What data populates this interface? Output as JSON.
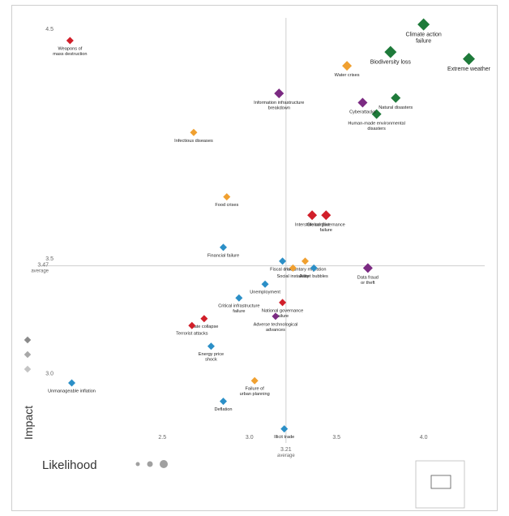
{
  "chart_data": {
    "type": "scatter",
    "xlabel": "Likelihood",
    "ylabel": "Impact",
    "xlim": [
      1.81,
      4.36
    ],
    "ylim": [
      2.72,
      4.57
    ],
    "x_ticks": [
      "2.5",
      "3.0",
      "3.5",
      "4.0"
    ],
    "y_ticks": [
      "4.5",
      "3.5",
      "3.0"
    ],
    "x_tick_values": [
      2.5,
      3.0,
      3.5,
      4.0
    ],
    "y_tick_values": [
      4.5,
      3.5,
      3.0
    ],
    "x_average": {
      "value": 3.21,
      "label": "3.21",
      "sublabel": "average"
    },
    "y_average": {
      "value": 3.47,
      "label": "3.47",
      "sublabel": "average"
    },
    "categories_colors": {
      "environmental": "#1e7a3a",
      "geopolitical": "#d11f2a",
      "technological": "#7b2a82",
      "economic": "#2b8fc7",
      "societal": "#f0a030"
    },
    "points": [
      {
        "label": "Climate action failure",
        "x": 4.0,
        "y": 4.52,
        "cat": "environmental",
        "size": "lg"
      },
      {
        "label": "Extreme weather",
        "x": 4.26,
        "y": 4.37,
        "cat": "environmental",
        "size": "lg"
      },
      {
        "label": "Biodiversity loss",
        "x": 3.81,
        "y": 4.4,
        "cat": "environmental",
        "size": "lg"
      },
      {
        "label": "Natural disasters",
        "x": 3.84,
        "y": 4.2,
        "cat": "environmental",
        "size": "md"
      },
      {
        "label": "Human-made environmental disasters",
        "x": 3.73,
        "y": 4.13,
        "cat": "environmental",
        "size": "md"
      },
      {
        "label": "Weapons of mass destruction",
        "x": 1.97,
        "y": 4.45,
        "cat": "geopolitical",
        "size": "sm"
      },
      {
        "label": "Water crises",
        "x": 3.56,
        "y": 4.34,
        "cat": "societal",
        "size": "md"
      },
      {
        "label": "Information infrastructure breakdown",
        "x": 3.17,
        "y": 4.22,
        "cat": "technological",
        "size": "md"
      },
      {
        "label": "Cyberattacks",
        "x": 3.65,
        "y": 4.18,
        "cat": "technological",
        "size": "md"
      },
      {
        "label": "Infectious diseases",
        "x": 2.68,
        "y": 4.05,
        "cat": "societal",
        "size": "sm"
      },
      {
        "label": "Food crises",
        "x": 2.87,
        "y": 3.77,
        "cat": "societal",
        "size": "sm"
      },
      {
        "label": "Interstate conflict",
        "x": 3.36,
        "y": 3.69,
        "cat": "geopolitical",
        "size": "md"
      },
      {
        "label": "Global governance failure",
        "x": 3.44,
        "y": 3.69,
        "cat": "geopolitical",
        "size": "md"
      },
      {
        "label": "Financial failure",
        "x": 2.85,
        "y": 3.55,
        "cat": "economic",
        "size": "sm"
      },
      {
        "label": "Fiscal crises",
        "x": 3.19,
        "y": 3.49,
        "cat": "economic",
        "size": "sm"
      },
      {
        "label": "Involuntary migration",
        "x": 3.32,
        "y": 3.49,
        "cat": "societal",
        "size": "sm"
      },
      {
        "label": "Social instability",
        "x": 3.25,
        "y": 3.46,
        "cat": "societal",
        "size": "sm"
      },
      {
        "label": "Asset bubbles",
        "x": 3.37,
        "y": 3.46,
        "cat": "economic",
        "size": "sm"
      },
      {
        "label": "Data fraud or theft",
        "x": 3.68,
        "y": 3.46,
        "cat": "technological",
        "size": "md"
      },
      {
        "label": "Unemployment",
        "x": 3.09,
        "y": 3.39,
        "cat": "economic",
        "size": "sm"
      },
      {
        "label": "Critical infrastructure failure",
        "x": 2.94,
        "y": 3.33,
        "cat": "economic",
        "size": "sm"
      },
      {
        "label": "National governance failure",
        "x": 3.19,
        "y": 3.31,
        "cat": "geopolitical",
        "size": "sm"
      },
      {
        "label": "Adverse technological advances",
        "x": 3.15,
        "y": 3.25,
        "cat": "technological",
        "size": "sm"
      },
      {
        "label": "State collapse",
        "x": 2.74,
        "y": 3.24,
        "cat": "geopolitical",
        "size": "sm"
      },
      {
        "label": "Terrorist attacks",
        "x": 2.67,
        "y": 3.21,
        "cat": "geopolitical",
        "size": "sm"
      },
      {
        "label": "Energy price shock",
        "x": 2.78,
        "y": 3.12,
        "cat": "economic",
        "size": "sm"
      },
      {
        "label": "Unmanageable inflation",
        "x": 1.98,
        "y": 2.96,
        "cat": "economic",
        "size": "sm"
      },
      {
        "label": "Failure of urban planning",
        "x": 3.03,
        "y": 2.97,
        "cat": "societal",
        "size": "sm"
      },
      {
        "label": "Deflation",
        "x": 2.85,
        "y": 2.88,
        "cat": "economic",
        "size": "sm"
      },
      {
        "label": "Illicit trade",
        "x": 3.2,
        "y": 2.76,
        "cat": "economic",
        "size": "sm"
      }
    ]
  }
}
